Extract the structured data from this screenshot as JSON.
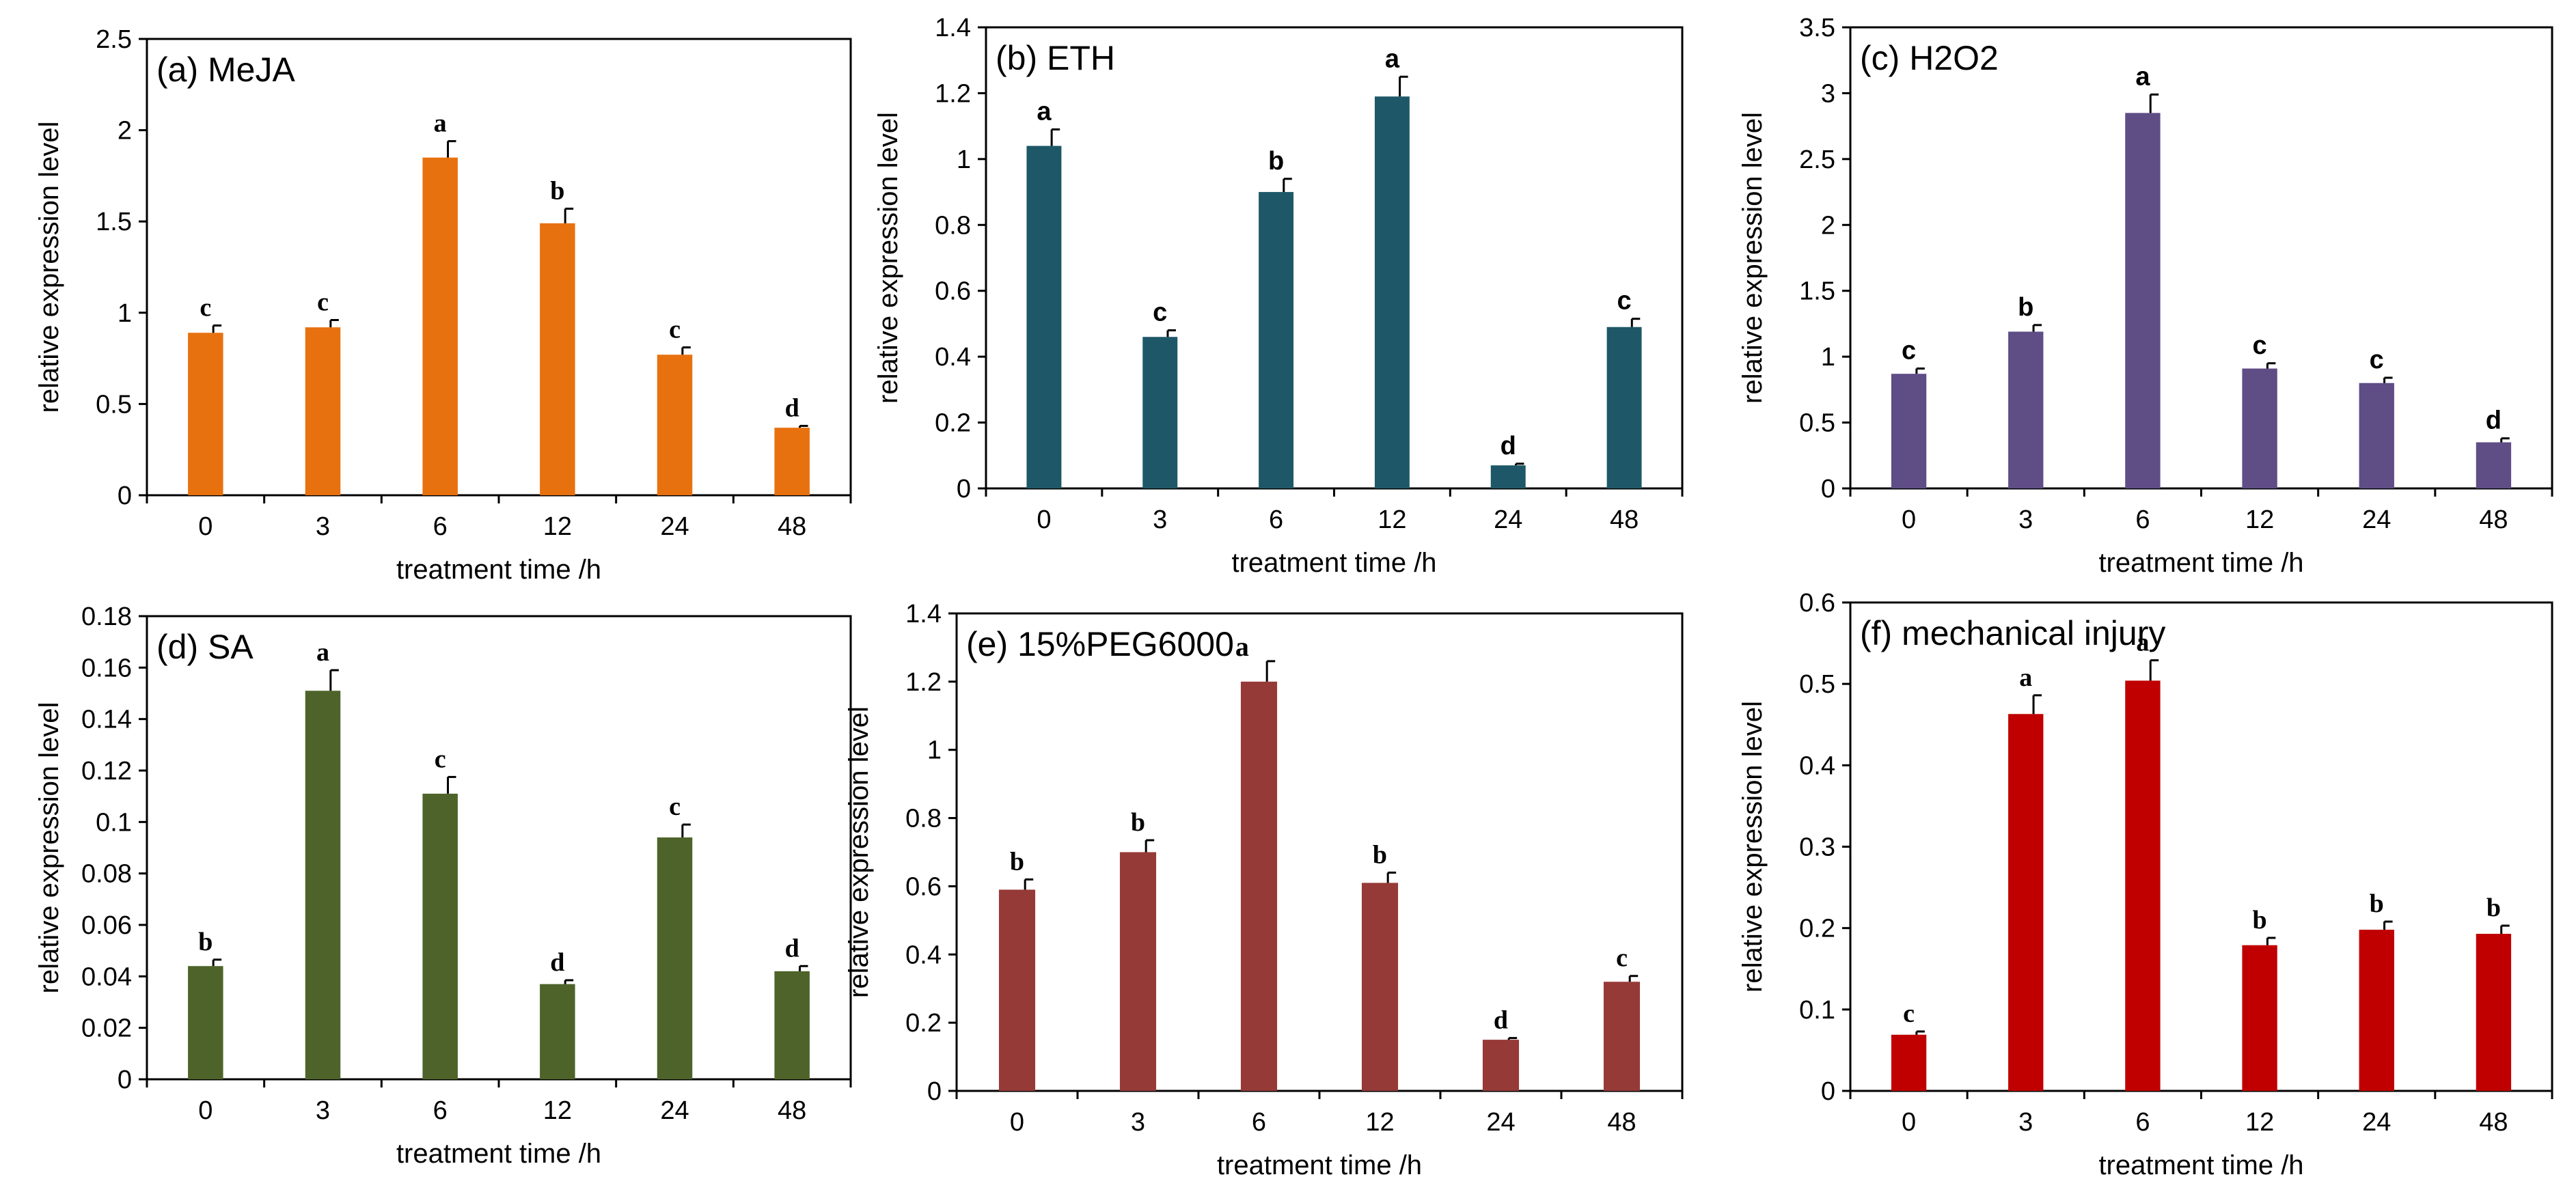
{
  "figure": {
    "xlabel": "treatment time /h",
    "ylabel": "relative expression level"
  },
  "chart_data": [
    {
      "type": "bar",
      "title": "(a) MeJA",
      "title_suffix": "",
      "color": "#e8710f",
      "categories": [
        "0",
        "3",
        "6",
        "12",
        "24",
        "48"
      ],
      "values": [
        0.89,
        0.92,
        1.85,
        1.49,
        0.77,
        0.37
      ],
      "errors": [
        0.04,
        0.04,
        0.09,
        0.08,
        0.04,
        0.01
      ],
      "letters": [
        "c",
        "c",
        "a",
        "b",
        "c",
        "d"
      ],
      "ylim": [
        0,
        2.5
      ],
      "yticks": [
        "0",
        "0.5",
        "1",
        "1.5",
        "2",
        "2.5"
      ],
      "ytick_values": [
        0,
        0.5,
        1,
        1.5,
        2,
        2.5
      ],
      "xlabel": "treatment time /h",
      "ylabel": "relative expression level",
      "letter_font": "serif"
    },
    {
      "type": "bar",
      "title": "(b) ETH",
      "title_suffix": "",
      "color": "#1e5868",
      "categories": [
        "0",
        "3",
        "6",
        "12",
        "24",
        "48"
      ],
      "values": [
        1.04,
        0.46,
        0.9,
        1.19,
        0.07,
        0.49
      ],
      "errors": [
        0.05,
        0.02,
        0.04,
        0.06,
        0.005,
        0.025
      ],
      "letters": [
        "a",
        "c",
        "b",
        "a",
        "d",
        "c"
      ],
      "ylim": [
        0,
        1.4
      ],
      "yticks": [
        "0",
        "0.2",
        "0.4",
        "0.6",
        "0.8",
        "1",
        "1.2",
        "1.4"
      ],
      "ytick_values": [
        0,
        0.2,
        0.4,
        0.6,
        0.8,
        1,
        1.2,
        1.4
      ],
      "xlabel": "treatment time /h",
      "ylabel": "relative expression level",
      "letter_font": "sans"
    },
    {
      "type": "bar",
      "title": "(c) H2O2",
      "title_suffix": "",
      "color": "#5f4d86",
      "categories": [
        "0",
        "3",
        "6",
        "12",
        "24",
        "48"
      ],
      "values": [
        0.87,
        1.19,
        2.85,
        0.91,
        0.8,
        0.35
      ],
      "errors": [
        0.04,
        0.05,
        0.14,
        0.04,
        0.04,
        0.03
      ],
      "letters": [
        "c",
        "b",
        "a",
        "c",
        "c",
        "d"
      ],
      "ylim": [
        0,
        3.5
      ],
      "yticks": [
        "0",
        "0.5",
        "1",
        "1.5",
        "2",
        "2.5",
        "3",
        "3.5"
      ],
      "ytick_values": [
        0,
        0.5,
        1,
        1.5,
        2,
        2.5,
        3,
        3.5
      ],
      "xlabel": "treatment time /h",
      "ylabel": "relative expression level",
      "letter_font": "sans"
    },
    {
      "type": "bar",
      "title": "(d) SA",
      "title_suffix": "",
      "color": "#4e6329",
      "categories": [
        "0",
        "3",
        "6",
        "12",
        "24",
        "48"
      ],
      "values": [
        0.044,
        0.151,
        0.111,
        0.037,
        0.094,
        0.042
      ],
      "errors": [
        0.0025,
        0.008,
        0.0065,
        0.0015,
        0.005,
        0.002
      ],
      "letters": [
        "b",
        "a",
        "c",
        "d",
        "c",
        "d"
      ],
      "ylim": [
        0,
        0.18
      ],
      "yticks": [
        "0",
        "0.02",
        "0.04",
        "0.06",
        "0.08",
        "0.1",
        "0.12",
        "0.14",
        "0.16",
        "0.18"
      ],
      "ytick_values": [
        0,
        0.02,
        0.04,
        0.06,
        0.08,
        0.1,
        0.12,
        0.14,
        0.16,
        0.18
      ],
      "xlabel": "treatment time /h",
      "ylabel": "relative expression level",
      "letter_font": "serif"
    },
    {
      "type": "bar",
      "title": "(e) 15%PEG6000",
      "title_suffix": "a",
      "color": "#963a37",
      "categories": [
        "0",
        "3",
        "6",
        "12",
        "24",
        "48"
      ],
      "values": [
        0.59,
        0.7,
        1.2,
        0.61,
        0.15,
        0.32
      ],
      "errors": [
        0.03,
        0.035,
        0.06,
        0.03,
        0.005,
        0.017
      ],
      "letters": [
        "b",
        "b",
        "",
        "b",
        "d",
        "c"
      ],
      "ylim": [
        0,
        1.4
      ],
      "yticks": [
        "0",
        "0.2",
        "0.4",
        "0.6",
        "0.8",
        "1",
        "1.2",
        "1.4"
      ],
      "ytick_values": [
        0,
        0.2,
        0.4,
        0.6,
        0.8,
        1,
        1.2,
        1.4
      ],
      "xlabel": "treatment time /h",
      "ylabel": "relative expression level",
      "letter_font": "serif"
    },
    {
      "type": "bar",
      "title": "(f) mechanical injury",
      "title_suffix": "",
      "color": "#c00000",
      "categories": [
        "0",
        "3",
        "6",
        "12",
        "24",
        "48"
      ],
      "values": [
        0.069,
        0.463,
        0.504,
        0.179,
        0.198,
        0.193
      ],
      "errors": [
        0.004,
        0.023,
        0.025,
        0.009,
        0.01,
        0.01
      ],
      "letters": [
        "c",
        "a",
        "a",
        "b",
        "b",
        "b"
      ],
      "ylim": [
        0,
        0.6
      ],
      "yticks": [
        "0",
        "0.1",
        "0.2",
        "0.3",
        "0.4",
        "0.5",
        "0.6"
      ],
      "ytick_values": [
        0,
        0.1,
        0.2,
        0.3,
        0.4,
        0.5,
        0.6
      ],
      "xlabel": "treatment time /h",
      "ylabel": "relative expression level",
      "letter_font": "serif"
    }
  ]
}
